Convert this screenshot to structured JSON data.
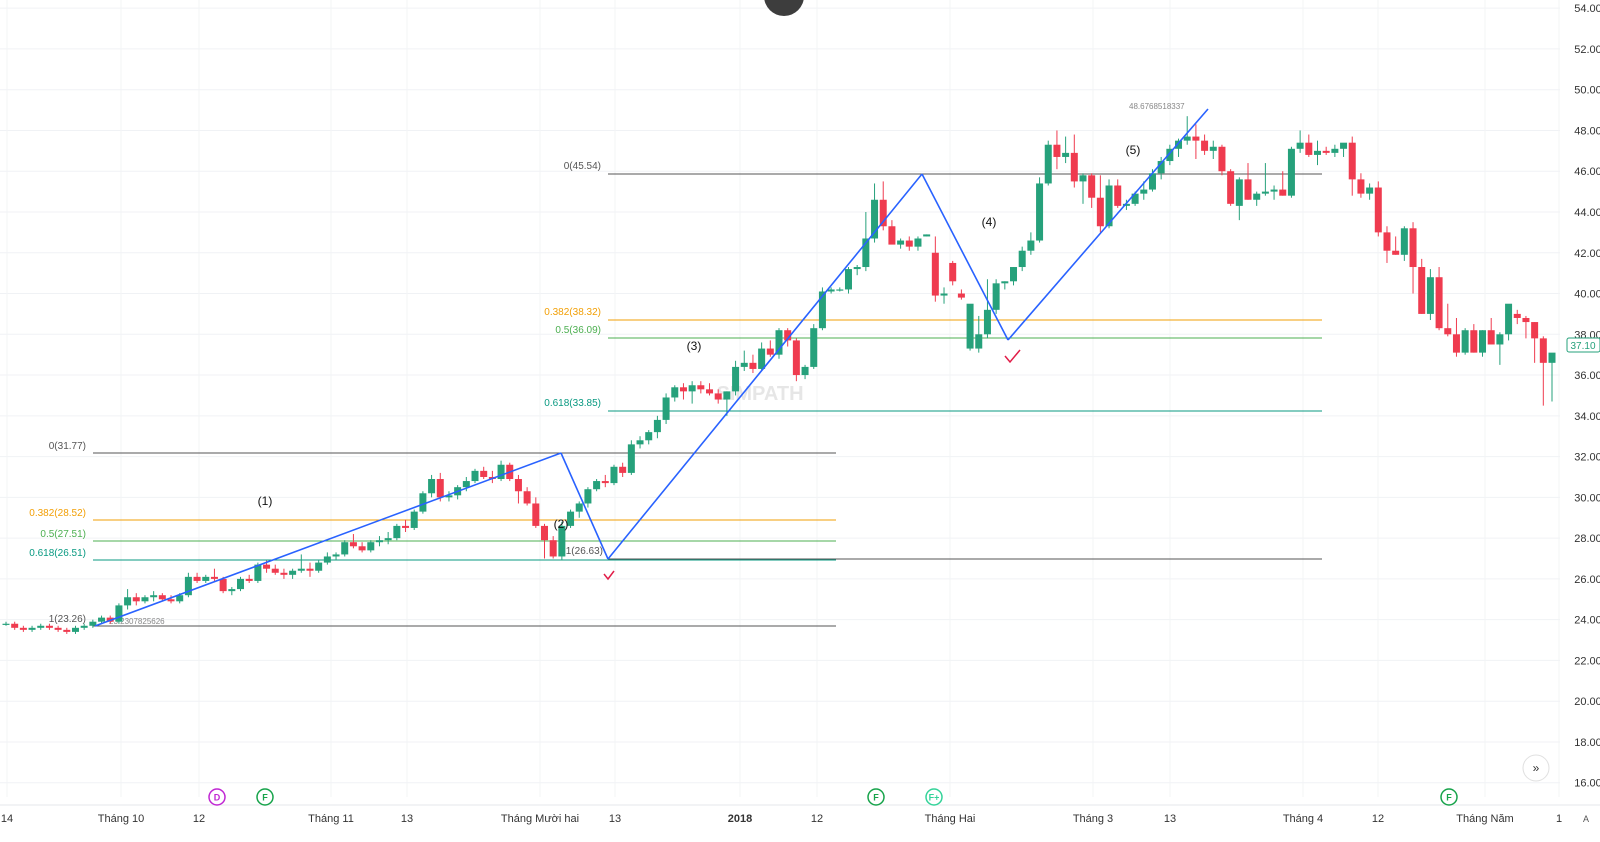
{
  "chart_data": {
    "type": "candlestick",
    "title": "",
    "ylim": [
      15,
      54
    ],
    "y_ticks": [
      "16.00",
      "18.00",
      "20.00",
      "22.00",
      "24.00",
      "26.00",
      "28.00",
      "30.00",
      "32.00",
      "34.00",
      "36.00",
      "38.00",
      "40.00",
      "42.00",
      "44.00",
      "46.00",
      "48.00",
      "50.00",
      "52.00",
      "54.00"
    ],
    "x_ticks": [
      "14",
      "Tháng 10",
      "12",
      "Tháng 11",
      "13",
      "Tháng Mười hai",
      "13",
      "2018",
      "12",
      "Tháng Hai",
      "Tháng 3",
      "13",
      "Tháng 4",
      "12",
      "Tháng Năm",
      "1"
    ],
    "last_price": "37.10",
    "up_color": "#26a17b",
    "down_color": "#ef3b4f",
    "fib_set_1": [
      {
        "label": "0(31.77)",
        "value": 31.77,
        "color": "#555555"
      },
      {
        "label": "0.382(28.52)",
        "value": 28.52,
        "color": "#f29f05"
      },
      {
        "label": "0.5(27.51)",
        "value": 27.51,
        "color": "#4caf50"
      },
      {
        "label": "0.618(26.51)",
        "value": 26.51,
        "color": "#089981"
      },
      {
        "label": "1(26.63)",
        "value": 26.63,
        "color": "#555555"
      },
      {
        "label": "1(23.26)",
        "value": 23.26,
        "color": "#555555"
      }
    ],
    "fib_set_2": [
      {
        "label": "0(45.54)",
        "value": 45.54,
        "color": "#555555"
      },
      {
        "label": "0.382(38.32)",
        "value": 38.32,
        "color": "#f29f05"
      },
      {
        "label": "0.5(36.09)",
        "value": 36.09,
        "color": "#4caf50"
      },
      {
        "label": "0.618(33.85)",
        "value": 33.85,
        "color": "#089981"
      }
    ],
    "annotations": [
      "23.2307825626",
      "48.6768518337"
    ],
    "wave_labels": [
      "(1)",
      "(2)",
      "(3)",
      "(4)",
      "(5)"
    ],
    "wave_points": [
      23.23,
      31.77,
      26.63,
      45.54,
      37.3,
      48.68
    ],
    "events": [
      {
        "label": "D",
        "color": "#c026d3",
        "filled": false
      },
      {
        "label": "F",
        "color": "#16a34a",
        "filled": false
      },
      {
        "label": "F",
        "color": "#16a34a",
        "filled": false
      },
      {
        "label": "F+",
        "color": "#34d399",
        "filled": false
      },
      {
        "label": "F",
        "color": "#16a34a",
        "filled": false
      }
    ],
    "watermark": "SIMPATH",
    "candles": [
      [
        23.8,
        23.9,
        23.7,
        23.8
      ],
      [
        23.8,
        23.9,
        23.5,
        23.6
      ],
      [
        23.6,
        23.7,
        23.4,
        23.5
      ],
      [
        23.5,
        23.7,
        23.4,
        23.6
      ],
      [
        23.6,
        23.8,
        23.5,
        23.7
      ],
      [
        23.7,
        23.8,
        23.5,
        23.6
      ],
      [
        23.6,
        23.7,
        23.4,
        23.5
      ],
      [
        23.5,
        23.6,
        23.3,
        23.4
      ],
      [
        23.4,
        23.7,
        23.3,
        23.6
      ],
      [
        23.6,
        23.8,
        23.5,
        23.7
      ],
      [
        23.7,
        24.0,
        23.6,
        23.9
      ],
      [
        23.9,
        24.2,
        23.8,
        24.1
      ],
      [
        24.1,
        24.2,
        23.8,
        23.9
      ],
      [
        23.9,
        24.8,
        23.8,
        24.7
      ],
      [
        24.7,
        25.5,
        24.5,
        25.1
      ],
      [
        25.1,
        25.3,
        24.7,
        24.9
      ],
      [
        24.9,
        25.2,
        24.8,
        25.1
      ],
      [
        25.1,
        25.4,
        24.9,
        25.2
      ],
      [
        25.2,
        25.3,
        24.9,
        25.0
      ],
      [
        25.0,
        25.2,
        24.8,
        24.9
      ],
      [
        24.9,
        25.3,
        24.8,
        25.2
      ],
      [
        25.2,
        26.3,
        25.1,
        26.1
      ],
      [
        26.1,
        26.3,
        25.8,
        25.9
      ],
      [
        25.9,
        26.2,
        25.8,
        26.1
      ],
      [
        26.1,
        26.5,
        25.9,
        26.0
      ],
      [
        26.0,
        26.1,
        25.3,
        25.4
      ],
      [
        25.4,
        25.6,
        25.2,
        25.5
      ],
      [
        25.5,
        26.1,
        25.4,
        26.0
      ],
      [
        26.0,
        26.2,
        25.8,
        25.9
      ],
      [
        25.9,
        26.8,
        25.8,
        26.7
      ],
      [
        26.7,
        26.9,
        26.3,
        26.5
      ],
      [
        26.5,
        26.7,
        26.2,
        26.3
      ],
      [
        26.3,
        26.5,
        26.0,
        26.2
      ],
      [
        26.2,
        26.5,
        26.0,
        26.4
      ],
      [
        26.4,
        27.2,
        26.3,
        26.5
      ],
      [
        26.5,
        26.8,
        26.1,
        26.4
      ],
      [
        26.4,
        26.9,
        26.3,
        26.8
      ],
      [
        26.8,
        27.3,
        26.7,
        27.1
      ],
      [
        27.1,
        27.3,
        26.9,
        27.2
      ],
      [
        27.2,
        27.9,
        27.1,
        27.8
      ],
      [
        27.8,
        28.2,
        27.5,
        27.6
      ],
      [
        27.6,
        27.8,
        27.3,
        27.4
      ],
      [
        27.4,
        27.9,
        27.3,
        27.8
      ],
      [
        27.8,
        28.1,
        27.6,
        27.9
      ],
      [
        27.9,
        28.3,
        27.7,
        28.0
      ],
      [
        28.0,
        28.7,
        27.9,
        28.6
      ],
      [
        28.6,
        28.9,
        28.3,
        28.5
      ],
      [
        28.5,
        29.4,
        28.4,
        29.3
      ],
      [
        29.3,
        30.3,
        29.2,
        30.2
      ],
      [
        30.2,
        31.1,
        30.0,
        30.9
      ],
      [
        30.9,
        31.2,
        29.8,
        30.0
      ],
      [
        30.0,
        30.3,
        29.8,
        30.1
      ],
      [
        30.1,
        30.6,
        29.9,
        30.5
      ],
      [
        30.5,
        31.0,
        30.3,
        30.8
      ],
      [
        30.8,
        31.4,
        30.7,
        31.3
      ],
      [
        31.3,
        31.5,
        30.9,
        31.0
      ],
      [
        31.0,
        31.3,
        30.7,
        30.9
      ],
      [
        30.9,
        31.8,
        30.8,
        31.6
      ],
      [
        31.6,
        31.7,
        30.8,
        30.9
      ],
      [
        30.9,
        31.1,
        29.7,
        30.3
      ],
      [
        30.3,
        30.5,
        29.6,
        29.7
      ],
      [
        29.7,
        30.0,
        28.5,
        28.6
      ],
      [
        28.6,
        28.7,
        27.0,
        27.9
      ],
      [
        27.9,
        28.1,
        27.0,
        27.1
      ],
      [
        27.1,
        28.8,
        26.9,
        28.6
      ],
      [
        28.6,
        29.4,
        28.5,
        29.3
      ],
      [
        29.3,
        29.8,
        29.0,
        29.7
      ],
      [
        29.7,
        30.5,
        29.5,
        30.4
      ],
      [
        30.4,
        30.9,
        30.3,
        30.8
      ],
      [
        30.8,
        31.1,
        30.5,
        30.7
      ],
      [
        30.7,
        31.6,
        30.6,
        31.5
      ],
      [
        31.5,
        31.7,
        31.0,
        31.2
      ],
      [
        31.2,
        32.8,
        31.1,
        32.6
      ],
      [
        32.6,
        33.0,
        32.4,
        32.8
      ],
      [
        32.8,
        33.3,
        32.6,
        33.2
      ],
      [
        33.2,
        34.0,
        32.9,
        33.8
      ],
      [
        33.8,
        35.1,
        33.6,
        34.9
      ],
      [
        34.9,
        35.5,
        34.7,
        35.4
      ],
      [
        35.4,
        35.6,
        34.8,
        35.2
      ],
      [
        35.2,
        35.7,
        34.6,
        35.5
      ],
      [
        35.5,
        35.7,
        35.1,
        35.3
      ],
      [
        35.3,
        35.6,
        35.0,
        35.1
      ],
      [
        35.1,
        35.3,
        34.6,
        34.8
      ],
      [
        34.8,
        35.2,
        34.0,
        35.2
      ],
      [
        35.2,
        36.7,
        35.0,
        36.4
      ],
      [
        36.4,
        37.2,
        36.2,
        36.6
      ],
      [
        36.6,
        37.0,
        36.1,
        36.3
      ],
      [
        36.3,
        37.6,
        36.2,
        37.3
      ],
      [
        37.3,
        37.7,
        36.9,
        37.0
      ],
      [
        37.0,
        38.3,
        36.8,
        38.2
      ],
      [
        38.2,
        38.3,
        37.4,
        37.7
      ],
      [
        37.7,
        37.8,
        35.7,
        36.0
      ],
      [
        36.0,
        36.5,
        35.8,
        36.4
      ],
      [
        36.4,
        38.5,
        36.3,
        38.3
      ],
      [
        38.3,
        40.3,
        38.2,
        40.1
      ],
      [
        40.1,
        40.3,
        40.0,
        40.2
      ],
      [
        40.2,
        40.3,
        40.1,
        40.2
      ],
      [
        40.2,
        41.3,
        40.0,
        41.2
      ],
      [
        41.2,
        41.4,
        40.9,
        41.3
      ],
      [
        41.3,
        44.0,
        41.1,
        42.7
      ],
      [
        42.7,
        45.4,
        42.5,
        44.6
      ],
      [
        44.6,
        45.5,
        43.1,
        43.3
      ],
      [
        43.3,
        43.6,
        42.7,
        42.4
      ],
      [
        42.4,
        42.7,
        42.2,
        42.6
      ],
      [
        42.6,
        42.8,
        42.1,
        42.3
      ],
      [
        42.3,
        42.8,
        42.1,
        42.7
      ],
      [
        42.8,
        42.9,
        42.8,
        42.9
      ],
      [
        42.0,
        42.8,
        39.6,
        39.9
      ],
      [
        39.9,
        40.3,
        39.5,
        40.0
      ],
      [
        41.5,
        41.6,
        40.4,
        40.6
      ],
      [
        40.0,
        40.2,
        39.7,
        39.8
      ],
      [
        37.3,
        39.2,
        37.2,
        39.5
      ],
      [
        37.3,
        38.9,
        37.1,
        38.0
      ],
      [
        38.0,
        40.7,
        37.8,
        39.2
      ],
      [
        39.2,
        40.7,
        39.0,
        40.5
      ],
      [
        40.5,
        40.6,
        40.2,
        40.6
      ],
      [
        40.6,
        41.3,
        40.4,
        41.3
      ],
      [
        41.3,
        42.3,
        41.1,
        42.1
      ],
      [
        42.1,
        43.0,
        41.9,
        42.6
      ],
      [
        42.6,
        45.7,
        42.5,
        45.4
      ],
      [
        45.4,
        47.5,
        45.3,
        47.3
      ],
      [
        47.3,
        48.0,
        46.1,
        46.7
      ],
      [
        46.7,
        47.7,
        46.4,
        46.9
      ],
      [
        46.9,
        47.8,
        45.2,
        45.5
      ],
      [
        45.5,
        45.9,
        44.4,
        45.8
      ],
      [
        45.8,
        45.9,
        44.2,
        44.7
      ],
      [
        44.7,
        45.8,
        43.0,
        43.3
      ],
      [
        43.3,
        45.6,
        43.2,
        45.3
      ],
      [
        45.3,
        45.6,
        44.2,
        44.3
      ],
      [
        44.3,
        44.6,
        44.1,
        44.4
      ],
      [
        44.4,
        45.0,
        44.3,
        44.9
      ],
      [
        44.9,
        45.5,
        44.6,
        45.1
      ],
      [
        45.1,
        46.1,
        45.0,
        45.9
      ],
      [
        45.9,
        46.7,
        45.6,
        46.5
      ],
      [
        46.5,
        47.3,
        46.3,
        47.1
      ],
      [
        47.1,
        47.6,
        46.7,
        47.5
      ],
      [
        47.5,
        48.7,
        47.3,
        47.7
      ],
      [
        47.7,
        48.3,
        46.6,
        47.5
      ],
      [
        47.5,
        47.8,
        46.8,
        47.0
      ],
      [
        47.0,
        47.5,
        46.6,
        47.2
      ],
      [
        47.2,
        47.3,
        45.8,
        46.0
      ],
      [
        46.0,
        46.1,
        44.3,
        44.4
      ],
      [
        44.3,
        45.7,
        43.6,
        45.6
      ],
      [
        45.6,
        46.4,
        44.6,
        44.6
      ],
      [
        44.6,
        45.0,
        44.3,
        44.9
      ],
      [
        44.9,
        46.4,
        44.8,
        45.0
      ],
      [
        45.0,
        45.3,
        44.6,
        45.1
      ],
      [
        45.1,
        46.0,
        44.8,
        44.8
      ],
      [
        44.8,
        47.2,
        44.7,
        47.1
      ],
      [
        47.1,
        48.0,
        46.9,
        47.4
      ],
      [
        47.4,
        47.8,
        46.7,
        46.8
      ],
      [
        46.8,
        47.5,
        46.3,
        47.0
      ],
      [
        47.0,
        47.2,
        46.8,
        46.9
      ],
      [
        46.9,
        47.3,
        46.7,
        47.1
      ],
      [
        47.1,
        47.3,
        46.7,
        47.4
      ],
      [
        47.4,
        47.7,
        44.8,
        45.6
      ],
      [
        45.6,
        45.9,
        44.7,
        44.9
      ],
      [
        44.9,
        45.4,
        44.6,
        45.2
      ],
      [
        45.2,
        45.5,
        42.8,
        43.0
      ],
      [
        43.0,
        43.3,
        41.5,
        42.1
      ],
      [
        42.1,
        42.8,
        41.9,
        41.9
      ],
      [
        41.9,
        43.3,
        41.6,
        43.2
      ],
      [
        43.2,
        43.5,
        40.0,
        41.3
      ],
      [
        41.3,
        41.7,
        39.0,
        39.0
      ],
      [
        39.0,
        41.2,
        38.7,
        40.8
      ],
      [
        40.8,
        41.3,
        38.2,
        38.3
      ],
      [
        38.3,
        39.5,
        37.9,
        38.0
      ],
      [
        38.0,
        38.8,
        36.9,
        37.1
      ],
      [
        37.1,
        38.3,
        37.0,
        38.2
      ],
      [
        38.2,
        38.5,
        37.1,
        37.1
      ],
      [
        37.1,
        38.2,
        36.9,
        38.2
      ],
      [
        38.2,
        38.8,
        37.5,
        37.5
      ],
      [
        37.5,
        38.1,
        36.5,
        38.0
      ],
      [
        38.0,
        39.2,
        37.7,
        39.5
      ],
      [
        39.0,
        39.2,
        38.5,
        38.8
      ],
      [
        38.8,
        38.9,
        37.8,
        38.6
      ],
      [
        38.6,
        38.6,
        36.6,
        37.8
      ],
      [
        37.8,
        37.9,
        34.5,
        36.6
      ],
      [
        36.6,
        37.0,
        34.7,
        37.1
      ]
    ]
  }
}
